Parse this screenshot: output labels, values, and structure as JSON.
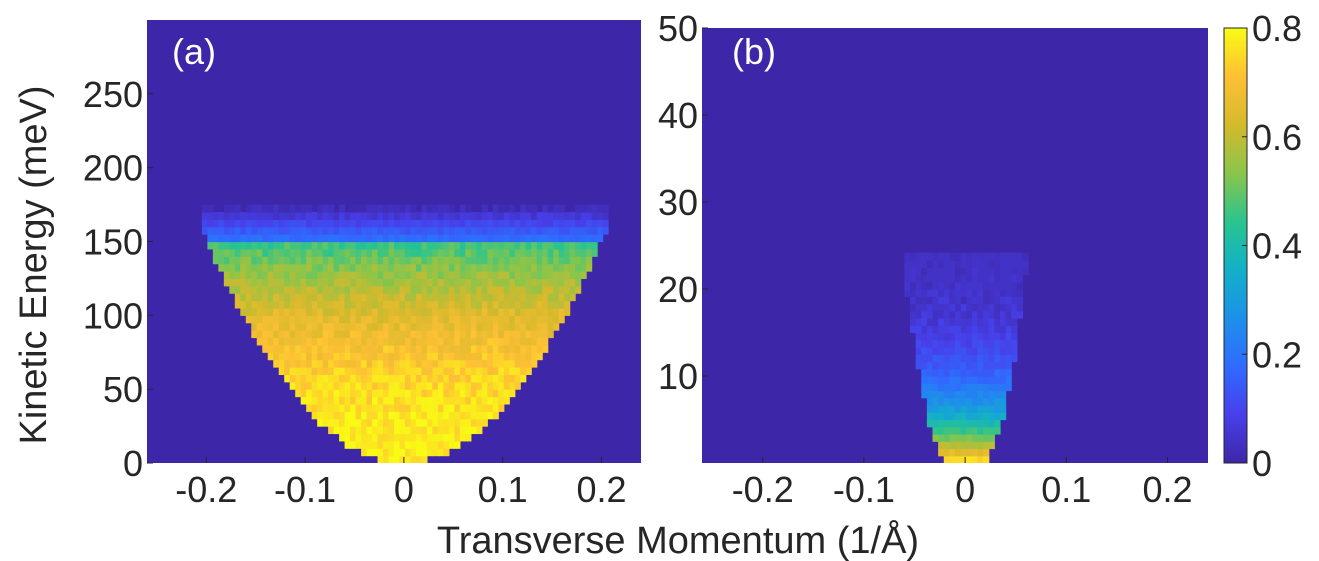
{
  "chart_data": [
    {
      "type": "heatmap",
      "panel_label": "(a)",
      "xlabel": "Transverse Momentum (1/Å)",
      "ylabel": "Kinetic Energy (meV)",
      "xlim": [
        -0.26,
        0.24
      ],
      "ylim": [
        0,
        300
      ],
      "x_ticks": [
        -0.2,
        -0.1,
        0,
        0.1,
        0.2
      ],
      "x_tick_labels": [
        "-0.2",
        "-0.1",
        "0",
        "0.1",
        "0.2"
      ],
      "y_ticks": [
        0,
        50,
        100,
        150,
        200,
        250
      ],
      "y_tick_labels": [
        "0",
        "50",
        "100",
        "150",
        "200",
        "250"
      ],
      "background_value": 0.0,
      "distribution": {
        "shape": "parabolic band",
        "band_edge_energy_meV": 150,
        "band_edge_momentum": [
          -0.2,
          0.2
        ],
        "band_bottom_momentum": 0.0,
        "peak_value": 0.78,
        "value_near_band_edge": 0.45
      }
    },
    {
      "type": "heatmap",
      "panel_label": "(b)",
      "xlabel": "Transverse Momentum (1/Å)",
      "ylabel": "",
      "xlim": [
        -0.26,
        0.24
      ],
      "ylim": [
        0,
        50
      ],
      "x_ticks": [
        -0.2,
        -0.1,
        0,
        0.1,
        0.2
      ],
      "x_tick_labels": [
        "-0.2",
        "-0.1",
        "0",
        "0.1",
        "0.2"
      ],
      "y_ticks": [
        10,
        20,
        30,
        40,
        50
      ],
      "y_tick_labels": [
        "10",
        "20",
        "30",
        "40",
        "50"
      ],
      "background_value": 0.0,
      "distribution": {
        "shape": "narrow cone",
        "top_energy_meV": 22,
        "half_width_at_top": 0.06,
        "half_width_at_bottom": 0.015,
        "peak_value": 0.8
      }
    }
  ],
  "colorbar": {
    "range": [
      0,
      0.8
    ],
    "ticks": [
      0,
      0.2,
      0.4,
      0.6,
      0.8
    ],
    "tick_labels": [
      "0",
      "0.2",
      "0.4",
      "0.6",
      "0.8"
    ],
    "colormap": "parula",
    "colors": [
      "#3e26a8",
      "#4740ea",
      "#2f6bff",
      "#1d91e9",
      "#12b0c8",
      "#2ac48e",
      "#8ac54a",
      "#d5b92c",
      "#fec035",
      "#f9fb14"
    ]
  },
  "shared_xlabel": "Transverse Momentum (1/Å)",
  "ylabel": "Kinetic Energy (meV)"
}
